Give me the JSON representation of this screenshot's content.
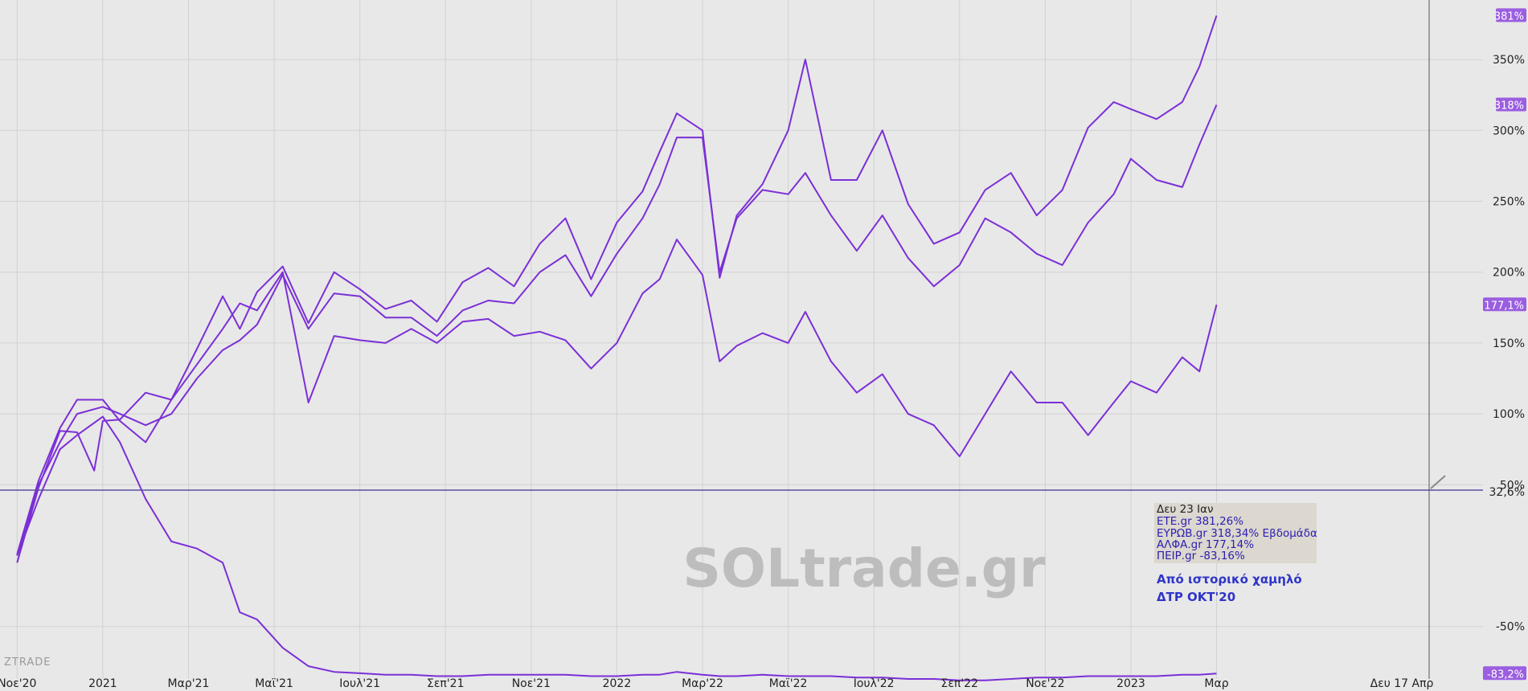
{
  "watermark": "SOLtrade.gr",
  "brand": "ZTRADE",
  "colors": {
    "series": "#7b2fd6",
    "label_bg": "#9b5ee0",
    "tooltip_bg": "#dcd7cf",
    "refline": "#5a4fa0"
  },
  "tooltip": {
    "date": "Δευ 23 Ιαν",
    "lines": [
      "ΕΤΕ.gr 381,26%",
      "ΕΥΡΩΒ.gr 318,34% Εβδομάδα",
      "ΑΛΦΑ.gr 177,14%",
      "ΠΕΙΡ.gr -83,16%"
    ]
  },
  "note": [
    "Από ιστορικό χαμηλό",
    "ΔΤΡ ΟΚΤ'20"
  ],
  "crosshair": {
    "value_label": "32,6%",
    "date_label": "Δευ 17 Απρ"
  },
  "chart_data": {
    "type": "line",
    "x_unit": "months since Nov 2020",
    "xlim": [
      -0.2,
      16.5
    ],
    "ylim": [
      -87,
      392
    ],
    "y_ticks": [
      {
        "v": 350,
        "label": "350%"
      },
      {
        "v": 300,
        "label": "300%"
      },
      {
        "v": 250,
        "label": "250%"
      },
      {
        "v": 200,
        "label": "200%"
      },
      {
        "v": 150,
        "label": "150%"
      },
      {
        "v": 100,
        "label": "100%"
      },
      {
        "v": 50,
        "label": "50%"
      },
      {
        "v": -50,
        "label": "-50%"
      }
    ],
    "x_ticks": [
      {
        "x": 0,
        "label": "Νοε'20"
      },
      {
        "x": 1,
        "label": "2021"
      },
      {
        "x": 2,
        "label": "Μαρ'21"
      },
      {
        "x": 3,
        "label": "Μαϊ'21"
      },
      {
        "x": 4,
        "label": "Ιουλ'21"
      },
      {
        "x": 5,
        "label": "Σεπ'21"
      },
      {
        "x": 6,
        "label": "Νοε'21"
      },
      {
        "x": 7,
        "label": "2022"
      },
      {
        "x": 8,
        "label": "Μαρ'22"
      },
      {
        "x": 9,
        "label": "Μαϊ'22"
      },
      {
        "x": 10,
        "label": "Ιουλ'22"
      },
      {
        "x": 11,
        "label": "Σεπ'22"
      },
      {
        "x": 12,
        "label": "Νοε'22"
      },
      {
        "x": 13,
        "label": "2023"
      },
      {
        "x": 14,
        "label": "Μαρ"
      }
    ],
    "series": [
      {
        "end_label": "381%",
        "points": [
          [
            0,
            1
          ],
          [
            0.25,
            53
          ],
          [
            0.5,
            90
          ],
          [
            0.7,
            110
          ],
          [
            1.0,
            110
          ],
          [
            1.2,
            95
          ],
          [
            1.5,
            80
          ],
          [
            1.8,
            110
          ],
          [
            2.1,
            146
          ],
          [
            2.4,
            183
          ],
          [
            2.6,
            160
          ],
          [
            2.8,
            186
          ],
          [
            3.1,
            204
          ],
          [
            3.4,
            164
          ],
          [
            3.7,
            200
          ],
          [
            4.0,
            188
          ],
          [
            4.3,
            174
          ],
          [
            4.6,
            180
          ],
          [
            4.9,
            165
          ],
          [
            5.2,
            193
          ],
          [
            5.5,
            203
          ],
          [
            5.8,
            190
          ],
          [
            6.1,
            220
          ],
          [
            6.4,
            238
          ],
          [
            6.7,
            195
          ],
          [
            7.0,
            235
          ],
          [
            7.3,
            257
          ],
          [
            7.5,
            285
          ],
          [
            7.7,
            312
          ],
          [
            8.0,
            300
          ],
          [
            8.2,
            196
          ],
          [
            8.4,
            240
          ],
          [
            8.7,
            262
          ],
          [
            9.0,
            300
          ],
          [
            9.2,
            350
          ],
          [
            9.5,
            265
          ],
          [
            9.8,
            265
          ],
          [
            10.1,
            300
          ],
          [
            10.4,
            248
          ],
          [
            10.7,
            220
          ],
          [
            11.0,
            228
          ],
          [
            11.3,
            258
          ],
          [
            11.6,
            270
          ],
          [
            11.9,
            240
          ],
          [
            12.2,
            258
          ],
          [
            12.5,
            302
          ],
          [
            12.8,
            320
          ],
          [
            13.0,
            315
          ],
          [
            13.3,
            308
          ],
          [
            13.6,
            320
          ],
          [
            13.8,
            345
          ],
          [
            14.0,
            381
          ]
        ]
      },
      {
        "end_label": "318%",
        "points": [
          [
            0,
            0
          ],
          [
            0.25,
            50
          ],
          [
            0.5,
            80
          ],
          [
            0.7,
            100
          ],
          [
            1.0,
            105
          ],
          [
            1.2,
            100
          ],
          [
            1.5,
            92
          ],
          [
            1.8,
            100
          ],
          [
            2.1,
            125
          ],
          [
            2.4,
            145
          ],
          [
            2.6,
            152
          ],
          [
            2.8,
            163
          ],
          [
            3.1,
            198
          ],
          [
            3.4,
            160
          ],
          [
            3.7,
            185
          ],
          [
            4.0,
            183
          ],
          [
            4.3,
            168
          ],
          [
            4.6,
            168
          ],
          [
            4.9,
            155
          ],
          [
            5.2,
            173
          ],
          [
            5.5,
            180
          ],
          [
            5.8,
            178
          ],
          [
            6.1,
            200
          ],
          [
            6.4,
            212
          ],
          [
            6.7,
            183
          ],
          [
            7.0,
            213
          ],
          [
            7.3,
            238
          ],
          [
            7.5,
            262
          ],
          [
            7.7,
            295
          ],
          [
            8.0,
            295
          ],
          [
            8.2,
            200
          ],
          [
            8.4,
            238
          ],
          [
            8.7,
            258
          ],
          [
            9.0,
            255
          ],
          [
            9.2,
            270
          ],
          [
            9.5,
            240
          ],
          [
            9.8,
            215
          ],
          [
            10.1,
            240
          ],
          [
            10.4,
            210
          ],
          [
            10.7,
            190
          ],
          [
            11.0,
            205
          ],
          [
            11.3,
            238
          ],
          [
            11.6,
            228
          ],
          [
            11.9,
            213
          ],
          [
            12.2,
            205
          ],
          [
            12.5,
            235
          ],
          [
            12.8,
            255
          ],
          [
            13.0,
            280
          ],
          [
            13.3,
            265
          ],
          [
            13.6,
            260
          ],
          [
            13.8,
            290
          ],
          [
            14.0,
            318
          ]
        ]
      },
      {
        "end_label": "177,1%",
        "points": [
          [
            0,
            -5
          ],
          [
            0.25,
            48
          ],
          [
            0.5,
            88
          ],
          [
            0.7,
            87
          ],
          [
            0.9,
            60
          ],
          [
            1.0,
            95
          ],
          [
            1.2,
            96
          ],
          [
            1.5,
            115
          ],
          [
            1.8,
            110
          ],
          [
            2.1,
            135
          ],
          [
            2.4,
            160
          ],
          [
            2.6,
            178
          ],
          [
            2.8,
            173
          ],
          [
            3.1,
            200
          ],
          [
            3.4,
            108
          ],
          [
            3.7,
            155
          ],
          [
            4.0,
            152
          ],
          [
            4.3,
            150
          ],
          [
            4.6,
            160
          ],
          [
            4.9,
            150
          ],
          [
            5.2,
            165
          ],
          [
            5.5,
            167
          ],
          [
            5.8,
            155
          ],
          [
            6.1,
            158
          ],
          [
            6.4,
            152
          ],
          [
            6.7,
            132
          ],
          [
            7.0,
            150
          ],
          [
            7.3,
            185
          ],
          [
            7.5,
            195
          ],
          [
            7.7,
            223
          ],
          [
            8.0,
            198
          ],
          [
            8.2,
            137
          ],
          [
            8.4,
            148
          ],
          [
            8.7,
            157
          ],
          [
            9.0,
            150
          ],
          [
            9.2,
            172
          ],
          [
            9.5,
            137
          ],
          [
            9.8,
            115
          ],
          [
            10.1,
            128
          ],
          [
            10.4,
            100
          ],
          [
            10.7,
            92
          ],
          [
            11.0,
            70
          ],
          [
            11.3,
            100
          ],
          [
            11.6,
            130
          ],
          [
            11.9,
            108
          ],
          [
            12.2,
            108
          ],
          [
            12.5,
            85
          ],
          [
            12.8,
            108
          ],
          [
            13.0,
            123
          ],
          [
            13.3,
            115
          ],
          [
            13.6,
            140
          ],
          [
            13.8,
            130
          ],
          [
            14.0,
            177
          ]
        ]
      },
      {
        "end_label": "-83,2%",
        "points": [
          [
            0,
            0
          ],
          [
            0.25,
            40
          ],
          [
            0.5,
            75
          ],
          [
            0.7,
            85
          ],
          [
            1.0,
            98
          ],
          [
            1.2,
            80
          ],
          [
            1.5,
            40
          ],
          [
            1.8,
            10
          ],
          [
            2.1,
            5
          ],
          [
            2.4,
            -5
          ],
          [
            2.6,
            -40
          ],
          [
            2.8,
            -45
          ],
          [
            3.1,
            -65
          ],
          [
            3.4,
            -78
          ],
          [
            3.7,
            -82
          ],
          [
            4.0,
            -83
          ],
          [
            4.3,
            -84
          ],
          [
            4.6,
            -84
          ],
          [
            4.9,
            -85
          ],
          [
            5.2,
            -85
          ],
          [
            5.5,
            -84
          ],
          [
            5.8,
            -84
          ],
          [
            6.1,
            -84
          ],
          [
            6.4,
            -84
          ],
          [
            6.7,
            -85
          ],
          [
            7.0,
            -85
          ],
          [
            7.3,
            -84
          ],
          [
            7.5,
            -84
          ],
          [
            7.7,
            -82
          ],
          [
            8.0,
            -84
          ],
          [
            8.2,
            -85
          ],
          [
            8.4,
            -85
          ],
          [
            8.7,
            -84
          ],
          [
            9.0,
            -85
          ],
          [
            9.2,
            -85
          ],
          [
            9.5,
            -85
          ],
          [
            9.8,
            -86
          ],
          [
            10.1,
            -86
          ],
          [
            10.4,
            -87
          ],
          [
            10.7,
            -87
          ],
          [
            11.0,
            -88
          ],
          [
            11.3,
            -88
          ],
          [
            11.6,
            -87
          ],
          [
            11.9,
            -86
          ],
          [
            12.2,
            -86
          ],
          [
            12.5,
            -85
          ],
          [
            12.8,
            -85
          ],
          [
            13.0,
            -85
          ],
          [
            13.3,
            -85
          ],
          [
            13.6,
            -84
          ],
          [
            13.8,
            -84
          ],
          [
            14.0,
            -83.2
          ]
        ]
      }
    ]
  }
}
